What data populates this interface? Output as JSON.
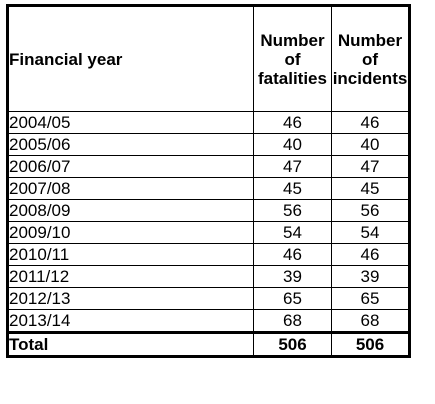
{
  "table": {
    "headers": {
      "year": "Financial year",
      "fatalities": [
        "Number",
        "of",
        "fatalities"
      ],
      "incidents": [
        "Number",
        "of",
        "incidents"
      ]
    },
    "rows": [
      {
        "year": "2004/05",
        "fatalities": "46",
        "incidents": "46"
      },
      {
        "year": "2005/06",
        "fatalities": "40",
        "incidents": "40"
      },
      {
        "year": "2006/07",
        "fatalities": "47",
        "incidents": "47"
      },
      {
        "year": "2007/08",
        "fatalities": "45",
        "incidents": "45"
      },
      {
        "year": "2008/09",
        "fatalities": "56",
        "incidents": "56"
      },
      {
        "year": "2009/10",
        "fatalities": "54",
        "incidents": "54"
      },
      {
        "year": "2010/11",
        "fatalities": "46",
        "incidents": "46"
      },
      {
        "year": "2011/12",
        "fatalities": "39",
        "incidents": "39"
      },
      {
        "year": "2012/13",
        "fatalities": "65",
        "incidents": "65"
      },
      {
        "year": "2013/14",
        "fatalities": "68",
        "incidents": "68"
      }
    ],
    "total": {
      "label": "Total",
      "fatalities": "506",
      "incidents": "506"
    }
  }
}
